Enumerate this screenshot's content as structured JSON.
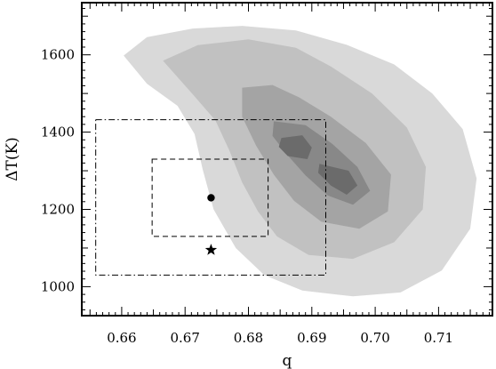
{
  "chart_data": {
    "type": "contour",
    "xlabel": "q",
    "ylabel": "ΔT(K)",
    "xlim": [
      0.6537,
      0.7185
    ],
    "ylim": [
      925,
      1735
    ],
    "x_ticks": [
      {
        "value": 0.66,
        "label": "0.66"
      },
      {
        "value": 0.67,
        "label": "0.67"
      },
      {
        "value": 0.68,
        "label": "0.68"
      },
      {
        "value": 0.69,
        "label": "0.69"
      },
      {
        "value": 0.7,
        "label": "0.70"
      },
      {
        "value": 0.71,
        "label": "0.71"
      }
    ],
    "y_ticks": [
      {
        "value": 1000,
        "label": "1000"
      },
      {
        "value": 1200,
        "label": "1200"
      },
      {
        "value": 1400,
        "label": "1400"
      },
      {
        "value": 1600,
        "label": "1600"
      }
    ],
    "contour_levels": [
      {
        "level": 1,
        "color": "#d9d9d9",
        "points": [
          [
            0.6603,
            1598
          ],
          [
            0.664,
            1646
          ],
          [
            0.6712,
            1668
          ],
          [
            0.679,
            1675
          ],
          [
            0.6875,
            1663
          ],
          [
            0.6955,
            1626
          ],
          [
            0.703,
            1575
          ],
          [
            0.709,
            1500
          ],
          [
            0.7138,
            1408
          ],
          [
            0.716,
            1280
          ],
          [
            0.715,
            1150
          ],
          [
            0.7105,
            1042
          ],
          [
            0.704,
            985
          ],
          [
            0.6965,
            975
          ],
          [
            0.6885,
            990
          ],
          [
            0.6825,
            1030
          ],
          [
            0.678,
            1100
          ],
          [
            0.6745,
            1200
          ],
          [
            0.6728,
            1302
          ],
          [
            0.6715,
            1395
          ],
          [
            0.6688,
            1468
          ],
          [
            0.664,
            1525
          ]
        ]
      },
      {
        "level": 2,
        "color": "#c1c1c1",
        "points": [
          [
            0.6665,
            1585
          ],
          [
            0.672,
            1625
          ],
          [
            0.68,
            1640
          ],
          [
            0.6875,
            1618
          ],
          [
            0.693,
            1570
          ],
          [
            0.6995,
            1500
          ],
          [
            0.705,
            1412
          ],
          [
            0.708,
            1310
          ],
          [
            0.7075,
            1200
          ],
          [
            0.703,
            1115
          ],
          [
            0.6965,
            1072
          ],
          [
            0.6895,
            1082
          ],
          [
            0.6845,
            1130
          ],
          [
            0.6815,
            1195
          ],
          [
            0.679,
            1270
          ],
          [
            0.677,
            1352
          ],
          [
            0.6748,
            1430
          ],
          [
            0.6712,
            1498
          ]
        ]
      },
      {
        "level": 3,
        "color": "#a4a4a4",
        "points": [
          [
            0.679,
            1515
          ],
          [
            0.6838,
            1522
          ],
          [
            0.688,
            1490
          ],
          [
            0.693,
            1440
          ],
          [
            0.6985,
            1372
          ],
          [
            0.7025,
            1290
          ],
          [
            0.702,
            1195
          ],
          [
            0.6975,
            1150
          ],
          [
            0.6915,
            1168
          ],
          [
            0.6872,
            1222
          ],
          [
            0.684,
            1290
          ],
          [
            0.6812,
            1365
          ],
          [
            0.679,
            1440
          ]
        ]
      },
      {
        "level": 4,
        "color": "#888888",
        "points": [
          [
            0.684,
            1428
          ],
          [
            0.689,
            1418
          ],
          [
            0.6932,
            1370
          ],
          [
            0.6972,
            1310
          ],
          [
            0.6992,
            1248
          ],
          [
            0.6965,
            1212
          ],
          [
            0.6925,
            1236
          ],
          [
            0.689,
            1288
          ],
          [
            0.6862,
            1340
          ],
          [
            0.6838,
            1390
          ]
        ]
      },
      {
        "level": 5,
        "color": "#6b6b6b",
        "points": [
          [
            0.6852,
            1385
          ],
          [
            0.6885,
            1392
          ],
          [
            0.69,
            1360
          ],
          [
            0.6893,
            1330
          ],
          [
            0.6862,
            1338
          ],
          [
            0.6848,
            1362
          ]
        ]
      },
      {
        "level": 5,
        "color": "#6b6b6b",
        "points": [
          [
            0.6912,
            1318
          ],
          [
            0.6958,
            1300
          ],
          [
            0.6972,
            1262
          ],
          [
            0.6955,
            1238
          ],
          [
            0.693,
            1262
          ],
          [
            0.691,
            1295
          ]
        ]
      }
    ],
    "rectangles": [
      {
        "style": "dash-dot",
        "x": [
          0.6559,
          0.6922
        ],
        "y": [
          1030,
          1432
        ]
      },
      {
        "style": "dashed",
        "x": [
          0.6648,
          0.6831
        ],
        "y": [
          1130,
          1330
        ]
      }
    ],
    "markers": [
      {
        "symbol": "circle",
        "x": 0.6741,
        "y": 1230
      },
      {
        "symbol": "star",
        "x": 0.6741,
        "y": 1095
      }
    ]
  }
}
